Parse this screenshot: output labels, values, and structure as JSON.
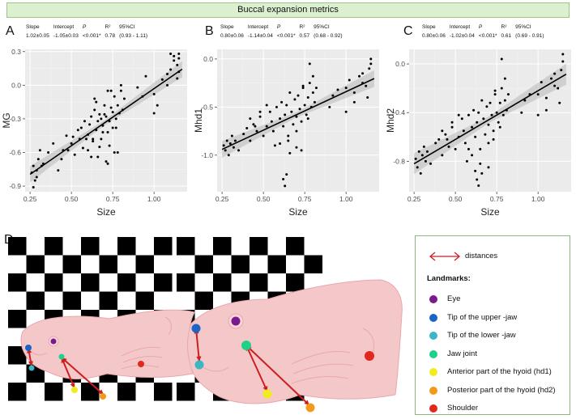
{
  "header": {
    "title": "Buccal expansion metrics"
  },
  "stats_headers": {
    "slope": "Slope",
    "intercept": "Intercept",
    "p": "P",
    "r2": "R²",
    "ci": "95%CI"
  },
  "panel_d_letter": "D",
  "chart_data": [
    {
      "panel": "A",
      "type": "scatter",
      "title": "",
      "xlabel": "Size",
      "ylabel": "MG",
      "xlim": [
        0.22,
        1.2
      ],
      "ylim": [
        -0.95,
        0.32
      ],
      "xticks": [
        0.25,
        0.5,
        0.75,
        1.0
      ],
      "xtick_labels": [
        "0.25",
        "0.50",
        "0.75",
        "1.00"
      ],
      "yticks": [
        -0.9,
        -0.6,
        -0.3,
        0.0,
        0.3
      ],
      "ytick_labels": [
        "-0.9",
        "-0.6",
        "-0.3",
        "0.0",
        "0.3"
      ],
      "fit": {
        "slope": 1.02,
        "intercept": -1.05,
        "se": 0.05
      },
      "stats": {
        "slope": "1.02±0.05",
        "intercept": "-1.05±0.03",
        "p": "<0.001*",
        "r2": "0.78",
        "ci": "(0.93 - 1.11)"
      },
      "x": [
        0.26,
        0.27,
        0.28,
        0.29,
        0.3,
        0.31,
        0.32,
        0.27,
        0.29,
        0.33,
        0.36,
        0.39,
        0.42,
        0.44,
        0.45,
        0.47,
        0.5,
        0.52,
        0.54,
        0.55,
        0.57,
        0.58,
        0.6,
        0.61,
        0.62,
        0.63,
        0.64,
        0.65,
        0.66,
        0.67,
        0.68,
        0.69,
        0.7,
        0.71,
        0.72,
        0.73,
        0.74,
        0.75,
        0.76,
        0.77,
        0.78,
        0.79,
        0.8,
        0.81,
        0.82,
        0.6,
        0.63,
        0.66,
        0.69,
        0.72,
        0.75,
        0.78,
        0.65,
        0.7,
        0.74,
        0.77,
        0.8,
        0.59,
        0.62,
        0.67,
        0.71,
        0.73,
        0.76,
        1.0,
        1.02,
        1.05,
        1.08,
        1.1,
        1.12,
        1.14,
        1.15,
        1.15,
        1.12,
        1.1,
        1.14,
        1.08,
        1.15,
        0.9,
        0.93,
        0.95,
        1.0,
        0.48,
        0.51,
        0.56,
        0.64,
        0.68,
        0.72
      ],
      "y": [
        -0.78,
        -0.72,
        -0.85,
        -0.76,
        -0.66,
        -0.58,
        -0.72,
        -0.91,
        -0.82,
        -0.7,
        -0.6,
        -0.52,
        -0.76,
        -0.66,
        -0.58,
        -0.45,
        -0.52,
        -0.62,
        -0.4,
        -0.48,
        -0.56,
        -0.32,
        -0.44,
        -0.35,
        -0.28,
        -0.48,
        -0.22,
        -0.4,
        -0.32,
        -0.26,
        -0.48,
        -0.36,
        -0.18,
        -0.28,
        -0.42,
        -0.32,
        -0.2,
        -0.24,
        -0.1,
        -0.3,
        -0.18,
        -0.25,
        -0.05,
        -0.22,
        -0.12,
        -0.58,
        -0.5,
        -0.64,
        -0.42,
        -0.7,
        -0.38,
        -0.6,
        -0.15,
        -0.26,
        -0.05,
        -0.38,
        0.0,
        -0.48,
        -0.64,
        -0.55,
        -0.68,
        -0.54,
        -0.6,
        -0.08,
        -0.18,
        0.05,
        0.1,
        0.14,
        0.22,
        0.18,
        0.24,
        0.28,
        0.26,
        0.28,
        0.06,
        0.0,
        0.12,
        -0.02,
        -0.1,
        0.08,
        -0.25,
        -0.58,
        -0.46,
        -0.38,
        -0.12,
        -0.3,
        -0.05
      ]
    },
    {
      "panel": "B",
      "type": "scatter",
      "title": "",
      "xlabel": "Size",
      "ylabel": "Mhd1",
      "xlim": [
        0.22,
        1.2
      ],
      "ylim": [
        -1.38,
        0.1
      ],
      "xticks": [
        0.25,
        0.5,
        0.75,
        1.0
      ],
      "xtick_labels": [
        "0.25",
        "0.50",
        "0.75",
        "1.00"
      ],
      "yticks": [
        -1.0,
        -0.5,
        0.0
      ],
      "ytick_labels": [
        "-1.0",
        "-0.5",
        "0.0"
      ],
      "fit": {
        "slope": 0.8,
        "intercept": -1.14,
        "se": 0.06
      },
      "stats": {
        "slope": "0.80±0.06",
        "intercept": "-1.14±0.04",
        "p": "<0.001*",
        "r2": "0.57",
        "ci": "(0.68 - 0.92)"
      },
      "x": [
        0.26,
        0.27,
        0.28,
        0.29,
        0.3,
        0.31,
        0.32,
        0.33,
        0.35,
        0.38,
        0.4,
        0.42,
        0.44,
        0.46,
        0.48,
        0.5,
        0.52,
        0.54,
        0.55,
        0.56,
        0.58,
        0.6,
        0.61,
        0.62,
        0.63,
        0.64,
        0.65,
        0.66,
        0.67,
        0.68,
        0.69,
        0.7,
        0.71,
        0.72,
        0.73,
        0.74,
        0.75,
        0.76,
        0.77,
        0.78,
        0.79,
        0.8,
        0.81,
        0.82,
        0.62,
        0.63,
        0.64,
        0.6,
        0.7,
        0.73,
        0.78,
        0.57,
        0.66,
        0.7,
        0.74,
        0.77,
        0.8,
        1.0,
        1.02,
        1.05,
        1.08,
        1.1,
        1.12,
        1.14,
        1.15,
        1.15,
        1.13,
        1.1,
        1.0,
        1.05,
        0.95,
        0.92,
        0.9,
        0.48,
        0.52,
        0.42,
        0.45,
        0.65
      ],
      "y": [
        -0.9,
        -0.95,
        -0.85,
        -1.0,
        -0.88,
        -0.8,
        -0.92,
        -0.85,
        -0.95,
        -0.78,
        -0.72,
        -0.85,
        -0.68,
        -0.75,
        -0.6,
        -0.8,
        -0.7,
        -0.55,
        -0.65,
        -0.75,
        -0.5,
        -0.62,
        -0.45,
        -0.7,
        -0.58,
        -0.48,
        -0.8,
        -0.35,
        -0.55,
        -0.68,
        -0.42,
        -0.6,
        -0.38,
        -0.52,
        -0.65,
        -0.3,
        -0.48,
        -0.58,
        -0.4,
        -0.25,
        -0.5,
        -0.35,
        -0.45,
        -0.3,
        -1.25,
        -1.32,
        -1.2,
        -0.88,
        -0.92,
        -0.95,
        -0.05,
        -0.9,
        -0.98,
        -0.75,
        -0.28,
        -0.62,
        -0.18,
        -0.3,
        -0.22,
        -0.35,
        -0.18,
        -0.15,
        -0.28,
        -0.1,
        -0.05,
        0.0,
        -0.4,
        -0.25,
        -0.55,
        -0.45,
        -0.32,
        -0.38,
        -0.5,
        -0.55,
        -0.48,
        -0.62,
        -0.7,
        -0.85
      ]
    },
    {
      "panel": "C",
      "type": "scatter",
      "title": "",
      "xlabel": "Size",
      "ylabel": "Mhd2",
      "xlim": [
        0.22,
        1.2
      ],
      "ylim": [
        -1.05,
        0.12
      ],
      "xticks": [
        0.25,
        0.5,
        0.75,
        1.0
      ],
      "xtick_labels": [
        "0.25",
        "0.50",
        "0.75",
        "1.00"
      ],
      "yticks": [
        -0.8,
        -0.4,
        0.0
      ],
      "ytick_labels": [
        "-0.8",
        "-0.4",
        "0.0"
      ],
      "fit": {
        "slope": 0.8,
        "intercept": -1.02,
        "se": 0.06
      },
      "stats": {
        "slope": "0.80±0.06",
        "intercept": "-1.02±0.04",
        "p": "<0.001*",
        "r2": "0.61",
        "ci": "(0.69 - 0.91)"
      },
      "x": [
        0.26,
        0.27,
        0.28,
        0.29,
        0.3,
        0.31,
        0.32,
        0.33,
        0.35,
        0.38,
        0.4,
        0.42,
        0.44,
        0.46,
        0.48,
        0.5,
        0.52,
        0.54,
        0.55,
        0.56,
        0.58,
        0.6,
        0.61,
        0.62,
        0.63,
        0.64,
        0.65,
        0.66,
        0.67,
        0.68,
        0.69,
        0.7,
        0.71,
        0.72,
        0.73,
        0.74,
        0.75,
        0.76,
        0.77,
        0.78,
        0.79,
        0.8,
        0.81,
        0.82,
        0.62,
        0.63,
        0.64,
        0.65,
        0.6,
        0.7,
        0.73,
        0.78,
        0.57,
        0.66,
        0.7,
        0.74,
        0.77,
        0.8,
        1.0,
        1.02,
        1.05,
        1.08,
        1.1,
        1.12,
        1.14,
        1.15,
        1.15,
        1.13,
        1.1,
        1.0,
        1.05,
        0.95,
        0.92,
        0.9,
        0.48,
        0.52,
        0.42,
        0.45,
        0.58
      ],
      "y": [
        -0.78,
        -0.85,
        -0.72,
        -0.9,
        -0.75,
        -0.68,
        -0.8,
        -0.72,
        -0.82,
        -0.65,
        -0.62,
        -0.75,
        -0.58,
        -0.68,
        -0.52,
        -0.7,
        -0.6,
        -0.45,
        -0.55,
        -0.65,
        -0.42,
        -0.52,
        -0.38,
        -0.6,
        -0.48,
        -0.4,
        -0.7,
        -0.3,
        -0.45,
        -0.58,
        -0.35,
        -0.5,
        -0.32,
        -0.42,
        -0.55,
        -0.25,
        -0.4,
        -0.48,
        -0.32,
        -0.2,
        -0.42,
        -0.3,
        -0.38,
        -0.25,
        -0.88,
        -0.95,
        -1.0,
        -0.82,
        -0.75,
        -0.85,
        -0.62,
        0.04,
        -0.8,
        -0.9,
        -0.65,
        -0.22,
        -0.52,
        -0.12,
        -0.25,
        -0.15,
        -0.28,
        -0.12,
        -0.08,
        -0.2,
        -0.05,
        0.02,
        0.08,
        -0.32,
        -0.18,
        -0.42,
        -0.38,
        -0.25,
        -0.3,
        -0.4,
        -0.48,
        -0.42,
        -0.55,
        -0.62,
        -0.7
      ]
    }
  ],
  "legend": {
    "distances": "distances",
    "landmarks_title": "Landmarks:",
    "items": [
      {
        "label": "Eye",
        "color": "#7b1a8c"
      },
      {
        "label": "Tip of the upper -jaw",
        "color": "#1c64c8"
      },
      {
        "label": "Tip of the lower -jaw",
        "color": "#3bb6c4"
      },
      {
        "label": "Jaw joint",
        "color": "#1fd08a"
      },
      {
        "label": "Anterior part of the hyoid (hd1)",
        "color": "#f2ec1e"
      },
      {
        "label": "Posterior part of the hyoid (hd2)",
        "color": "#f39a1d"
      },
      {
        "label": "Shoulder",
        "color": "#e0281c"
      }
    ]
  },
  "colors": {
    "arrow": "#cc1f1f",
    "fish": "#f4c7c9",
    "fish_edge": "#e9a8ad",
    "panel_bg": "#ebebeb"
  }
}
